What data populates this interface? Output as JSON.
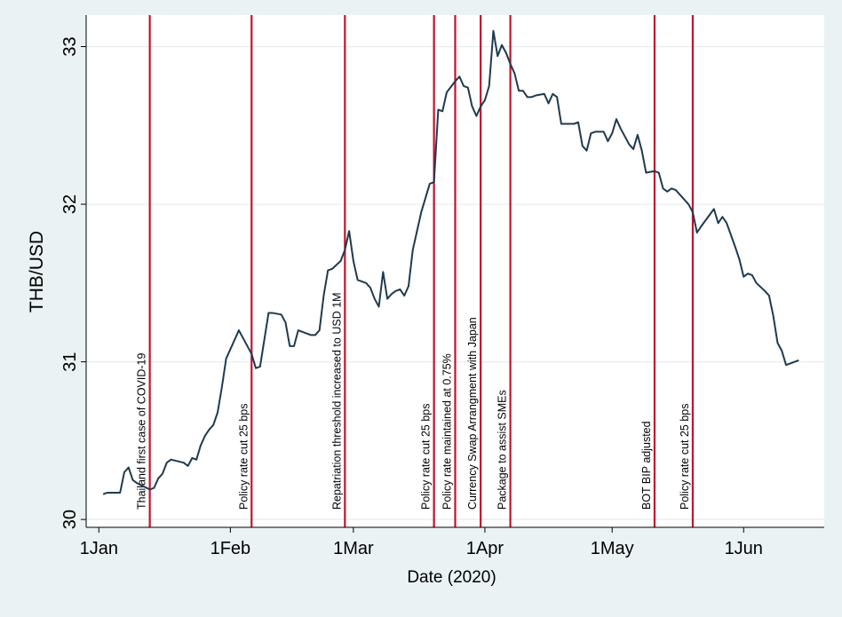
{
  "chart_data": {
    "type": "line",
    "title": "",
    "xlabel": "Date (2020)",
    "ylabel": "THB/USD",
    "ylim": [
      29.95,
      33.2
    ],
    "xlim": [
      "2019-12-29",
      "2020-06-20"
    ],
    "x_ticks": [
      {
        "date": "2020-01-01",
        "label": "1Jan"
      },
      {
        "date": "2020-02-01",
        "label": "1Feb"
      },
      {
        "date": "2020-03-01",
        "label": "1Mar"
      },
      {
        "date": "2020-04-01",
        "label": "1Apr"
      },
      {
        "date": "2020-05-01",
        "label": "1May"
      },
      {
        "date": "2020-06-01",
        "label": "1Jun"
      }
    ],
    "y_ticks": [
      30,
      31,
      32,
      33
    ],
    "grid": true,
    "series": [
      {
        "color": "#1f3a4f",
        "points": [
          [
            "2020-01-02",
            30.16
          ],
          [
            "2020-01-03",
            30.17
          ],
          [
            "2020-01-06",
            30.17
          ],
          [
            "2020-01-07",
            30.3
          ],
          [
            "2020-01-08",
            30.33
          ],
          [
            "2020-01-09",
            30.25
          ],
          [
            "2020-01-10",
            30.23
          ],
          [
            "2020-01-13",
            30.19
          ],
          [
            "2020-01-14",
            30.2
          ],
          [
            "2020-01-15",
            30.26
          ],
          [
            "2020-01-16",
            30.29
          ],
          [
            "2020-01-17",
            30.36
          ],
          [
            "2020-01-18",
            30.38
          ],
          [
            "2020-01-21",
            30.36
          ],
          [
            "2020-01-22",
            30.34
          ],
          [
            "2020-01-23",
            30.39
          ],
          [
            "2020-01-24",
            30.38
          ],
          [
            "2020-01-25",
            30.47
          ],
          [
            "2020-01-26",
            30.53
          ],
          [
            "2020-01-27",
            30.57
          ],
          [
            "2020-01-28",
            30.6
          ],
          [
            "2020-01-29",
            30.68
          ],
          [
            "2020-01-30",
            30.84
          ],
          [
            "2020-01-31",
            31.02
          ],
          [
            "2020-02-03",
            31.2
          ],
          [
            "2020-02-04",
            31.15
          ],
          [
            "2020-02-06",
            31.05
          ],
          [
            "2020-02-07",
            30.96
          ],
          [
            "2020-02-08",
            30.97
          ],
          [
            "2020-02-10",
            31.31
          ],
          [
            "2020-02-11",
            31.31
          ],
          [
            "2020-02-13",
            31.3
          ],
          [
            "2020-02-14",
            31.25
          ],
          [
            "2020-02-15",
            31.1
          ],
          [
            "2020-02-16",
            31.1
          ],
          [
            "2020-02-17",
            31.2
          ],
          [
            "2020-02-20",
            31.17
          ],
          [
            "2020-02-21",
            31.17
          ],
          [
            "2020-02-22",
            31.2
          ],
          [
            "2020-02-23",
            31.42
          ],
          [
            "2020-02-24",
            31.58
          ],
          [
            "2020-02-25",
            31.59
          ],
          [
            "2020-02-27",
            31.64
          ],
          [
            "2020-02-28",
            31.71
          ],
          [
            "2020-02-29",
            31.83
          ],
          [
            "2020-03-01",
            31.64
          ],
          [
            "2020-03-02",
            31.52
          ],
          [
            "2020-03-04",
            31.5
          ],
          [
            "2020-03-05",
            31.47
          ],
          [
            "2020-03-06",
            31.4
          ],
          [
            "2020-03-07",
            31.35
          ],
          [
            "2020-03-08",
            31.57
          ],
          [
            "2020-03-09",
            31.4
          ],
          [
            "2020-03-10",
            31.43
          ],
          [
            "2020-03-11",
            31.45
          ],
          [
            "2020-03-12",
            31.46
          ],
          [
            "2020-03-13",
            31.42
          ],
          [
            "2020-03-14",
            31.48
          ],
          [
            "2020-03-15",
            31.71
          ],
          [
            "2020-03-16",
            31.83
          ],
          [
            "2020-03-17",
            31.95
          ],
          [
            "2020-03-18",
            32.04
          ],
          [
            "2020-03-19",
            32.13
          ],
          [
            "2020-03-20",
            32.14
          ],
          [
            "2020-03-21",
            32.6
          ],
          [
            "2020-03-22",
            32.59
          ],
          [
            "2020-03-23",
            32.71
          ],
          [
            "2020-03-25",
            32.78
          ],
          [
            "2020-03-26",
            32.81
          ],
          [
            "2020-03-27",
            32.75
          ],
          [
            "2020-03-28",
            32.74
          ],
          [
            "2020-03-29",
            32.62
          ],
          [
            "2020-03-30",
            32.56
          ],
          [
            "2020-03-31",
            32.62
          ],
          [
            "2020-04-01",
            32.66
          ],
          [
            "2020-04-02",
            32.75
          ],
          [
            "2020-04-03",
            33.1
          ],
          [
            "2020-04-04",
            32.94
          ],
          [
            "2020-04-05",
            33.01
          ],
          [
            "2020-04-06",
            32.96
          ],
          [
            "2020-04-07",
            32.89
          ],
          [
            "2020-04-08",
            32.83
          ],
          [
            "2020-04-09",
            32.72
          ],
          [
            "2020-04-10",
            32.72
          ],
          [
            "2020-04-11",
            32.68
          ],
          [
            "2020-04-12",
            32.68
          ],
          [
            "2020-04-13",
            32.69
          ],
          [
            "2020-04-15",
            32.7
          ],
          [
            "2020-04-16",
            32.64
          ],
          [
            "2020-04-17",
            32.7
          ],
          [
            "2020-04-18",
            32.68
          ],
          [
            "2020-04-19",
            32.51
          ],
          [
            "2020-04-20",
            32.51
          ],
          [
            "2020-04-22",
            32.51
          ],
          [
            "2020-04-23",
            32.52
          ],
          [
            "2020-04-24",
            32.37
          ],
          [
            "2020-04-25",
            32.34
          ],
          [
            "2020-04-26",
            32.45
          ],
          [
            "2020-04-27",
            32.46
          ],
          [
            "2020-04-28",
            32.46
          ],
          [
            "2020-04-29",
            32.46
          ],
          [
            "2020-04-30",
            32.4
          ],
          [
            "2020-05-01",
            32.45
          ],
          [
            "2020-05-02",
            32.54
          ],
          [
            "2020-05-03",
            32.48
          ],
          [
            "2020-05-04",
            32.43
          ],
          [
            "2020-05-05",
            32.38
          ],
          [
            "2020-05-06",
            32.35
          ],
          [
            "2020-05-07",
            32.44
          ],
          [
            "2020-05-08",
            32.34
          ],
          [
            "2020-05-09",
            32.2
          ],
          [
            "2020-05-11",
            32.21
          ],
          [
            "2020-05-12",
            32.2
          ],
          [
            "2020-05-13",
            32.1
          ],
          [
            "2020-05-14",
            32.08
          ],
          [
            "2020-05-15",
            32.1
          ],
          [
            "2020-05-16",
            32.09
          ],
          [
            "2020-05-19",
            32.0
          ],
          [
            "2020-05-20",
            31.95
          ],
          [
            "2020-05-21",
            31.82
          ],
          [
            "2020-05-22",
            31.86
          ],
          [
            "2020-05-25",
            31.97
          ],
          [
            "2020-05-26",
            31.88
          ],
          [
            "2020-05-27",
            31.92
          ],
          [
            "2020-05-28",
            31.88
          ],
          [
            "2020-05-30",
            31.73
          ],
          [
            "2020-05-31",
            31.65
          ],
          [
            "2020-06-01",
            31.54
          ],
          [
            "2020-06-02",
            31.56
          ],
          [
            "2020-06-03",
            31.55
          ],
          [
            "2020-06-04",
            31.5
          ],
          [
            "2020-06-06",
            31.45
          ],
          [
            "2020-06-07",
            31.42
          ],
          [
            "2020-06-08",
            31.29
          ],
          [
            "2020-06-09",
            31.12
          ],
          [
            "2020-06-10",
            31.07
          ],
          [
            "2020-06-11",
            30.98
          ],
          [
            "2020-06-14",
            31.01
          ]
        ]
      }
    ],
    "events": [
      {
        "date": "2020-01-13",
        "label": "Thailand first case of COVID-19"
      },
      {
        "date": "2020-02-06",
        "label": "Policy rate cut 25 bps"
      },
      {
        "date": "2020-02-28",
        "label": "Repatriation threshold increased to USD 1M"
      },
      {
        "date": "2020-03-20",
        "label": "Policy rate cut 25 bps"
      },
      {
        "date": "2020-03-25",
        "label": "Policy rate maintained at 0.75%"
      },
      {
        "date": "2020-03-31",
        "label": "Currency Swap Arrangment with Japan"
      },
      {
        "date": "2020-04-07",
        "label": "Package to assist SMEs"
      },
      {
        "date": "2020-05-11",
        "label": "BOT BIP adjusted"
      },
      {
        "date": "2020-05-20",
        "label": "Policy rate cut 25 bps"
      }
    ],
    "event_line_color": "#c0142f"
  }
}
